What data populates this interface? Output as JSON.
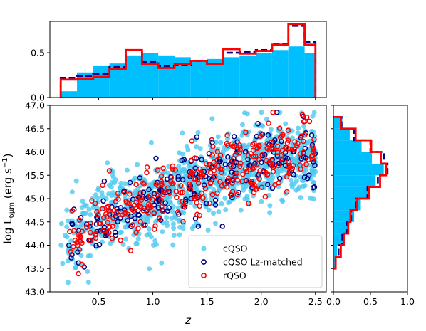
{
  "chart_data": [
    {
      "id": "main-scatter",
      "type": "scatter",
      "xlabel": "z",
      "ylabel": "log L6μm (erg s−1)",
      "ylabel_parts": {
        "main": "log L",
        "subscript": "6μm",
        "units_open": " (erg s",
        "units_sup": "−1",
        "units_close": ")"
      },
      "xlim": [
        0.05,
        2.6
      ],
      "ylim": [
        43.0,
        47.0
      ],
      "xticks": [
        "0.5",
        "1.0",
        "1.5",
        "2.0",
        "2.5"
      ],
      "yticks": [
        "43.0",
        "43.5",
        "44.0",
        "44.5",
        "45.0",
        "45.5",
        "46.0",
        "46.5",
        "47.0"
      ],
      "legend_position": "lower-right",
      "series": [
        {
          "name": "cQSO",
          "color": "#4ec9f0",
          "marker": "filled-circle",
          "trend": {
            "x": [
              0.2,
              0.5,
              1.0,
              1.5,
              2.0,
              2.5
            ],
            "y": [
              44.1,
              44.55,
              45.0,
              45.45,
              45.75,
              46.0
            ]
          },
          "x_range": [
            0.15,
            2.5
          ],
          "scatter": 0.45,
          "count": 900
        },
        {
          "name": "cQSO Lz-matched",
          "color": "#000080",
          "marker": "open-circle",
          "trend": {
            "x": [
              0.2,
              0.5,
              1.0,
              1.5,
              2.0,
              2.5
            ],
            "y": [
              44.0,
              44.5,
              45.05,
              45.45,
              45.8,
              46.05
            ]
          },
          "x_range": [
            0.22,
            2.5
          ],
          "scatter": 0.35,
          "count": 230
        },
        {
          "name": "rQSO",
          "color": "#ff0000",
          "marker": "open-circle",
          "trend": {
            "x": [
              0.2,
              0.5,
              1.0,
              1.5,
              2.0,
              2.5
            ],
            "y": [
              44.0,
              44.5,
              45.05,
              45.45,
              45.8,
              46.05
            ]
          },
          "x_range": [
            0.22,
            2.5
          ],
          "scatter": 0.35,
          "count": 330
        }
      ]
    },
    {
      "id": "top-histogram",
      "type": "bar",
      "xlim": [
        0.05,
        2.6
      ],
      "ylim": [
        0.0,
        0.85
      ],
      "yticks": [
        "0.0",
        "0.5"
      ],
      "bin_edges": [
        0.15,
        0.3,
        0.45,
        0.6,
        0.75,
        0.9,
        1.05,
        1.2,
        1.35,
        1.5,
        1.65,
        1.8,
        1.95,
        2.1,
        2.25,
        2.4,
        2.5
      ],
      "series": [
        {
          "name": "cQSO",
          "style": "filled",
          "color": "#00bfff",
          "values": [
            0.07,
            0.28,
            0.35,
            0.38,
            0.47,
            0.5,
            0.47,
            0.45,
            0.41,
            0.43,
            0.45,
            0.47,
            0.5,
            0.53,
            0.57,
            0.5
          ]
        },
        {
          "name": "cQSO Lz-matched",
          "style": "dashed-step",
          "color": "#00008b",
          "values": [
            0.22,
            0.24,
            0.26,
            0.34,
            0.53,
            0.4,
            0.35,
            0.36,
            0.41,
            0.37,
            0.5,
            0.51,
            0.53,
            0.6,
            0.8,
            0.62
          ]
        },
        {
          "name": "rQSO",
          "style": "step",
          "color": "#ff0000",
          "values": [
            0.2,
            0.21,
            0.23,
            0.32,
            0.53,
            0.37,
            0.33,
            0.37,
            0.41,
            0.37,
            0.54,
            0.49,
            0.52,
            0.59,
            0.82,
            0.59
          ]
        }
      ]
    },
    {
      "id": "right-histogram",
      "type": "bar",
      "orientation": "horizontal",
      "xlim": [
        0.0,
        1.0
      ],
      "xticks": [
        "0.0",
        "0.5",
        "1.0"
      ],
      "ylim": [
        43.0,
        47.0
      ],
      "bin_edges": [
        43.5,
        43.75,
        44.0,
        44.25,
        44.5,
        44.75,
        45.0,
        45.25,
        45.5,
        45.75,
        46.0,
        46.25,
        46.5,
        46.75
      ],
      "series": [
        {
          "name": "cQSO",
          "style": "filled",
          "color": "#00bfff",
          "values": [
            0.02,
            0.05,
            0.13,
            0.2,
            0.28,
            0.37,
            0.47,
            0.57,
            0.68,
            0.52,
            0.38,
            0.22,
            0.12
          ]
        },
        {
          "name": "cQSO Lz-matched",
          "style": "dashed-step",
          "color": "#00008b",
          "values": [
            0.03,
            0.07,
            0.12,
            0.18,
            0.24,
            0.31,
            0.46,
            0.6,
            0.73,
            0.68,
            0.5,
            0.28,
            0.11
          ]
        },
        {
          "name": "rQSO",
          "style": "step",
          "color": "#ff0000",
          "values": [
            0.03,
            0.1,
            0.14,
            0.2,
            0.23,
            0.32,
            0.48,
            0.63,
            0.71,
            0.64,
            0.51,
            0.3,
            0.1
          ]
        }
      ]
    }
  ]
}
